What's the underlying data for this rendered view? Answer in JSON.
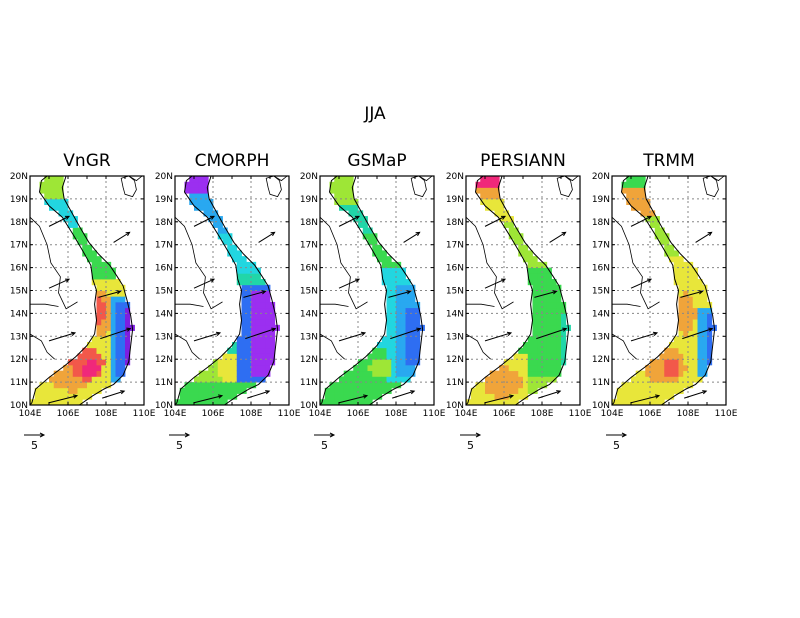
{
  "season_label": "JJA",
  "panels": [
    {
      "title": "VnGR",
      "scheme": "vngr"
    },
    {
      "title": "CMORPH",
      "scheme": "cmorph"
    },
    {
      "title": "GSMaP",
      "scheme": "gsmap"
    },
    {
      "title": "PERSIANN",
      "scheme": "persiann"
    },
    {
      "title": "TRMM",
      "scheme": "trmm"
    }
  ],
  "lat_ticks": [
    "10N",
    "11N",
    "12N",
    "13N",
    "14N",
    "15N",
    "16N",
    "17N",
    "18N",
    "19N",
    "20N"
  ],
  "lon_ticks": [
    "104E",
    "106E",
    "108E",
    "110E"
  ],
  "reference_vector_label": "5",
  "map_extent": {
    "lon": [
      104,
      110
    ],
    "lat": [
      10,
      20
    ]
  },
  "grid_lines": {
    "lon": [
      106,
      108
    ],
    "lat": [
      11,
      12,
      13,
      14,
      15,
      16,
      17,
      18,
      19
    ]
  },
  "colors": {
    "purple": "#7d1fe0",
    "violet": "#9b2ff0",
    "blue": "#2e6ef2",
    "skyblue": "#29a8f0",
    "cyan": "#22d6e0",
    "teal": "#21d6a8",
    "green": "#3ad94f",
    "lime": "#9ee636",
    "yellow": "#e8e63a",
    "orange": "#f0a43a",
    "red": "#f2584a",
    "magenta": "#f0287a"
  }
}
